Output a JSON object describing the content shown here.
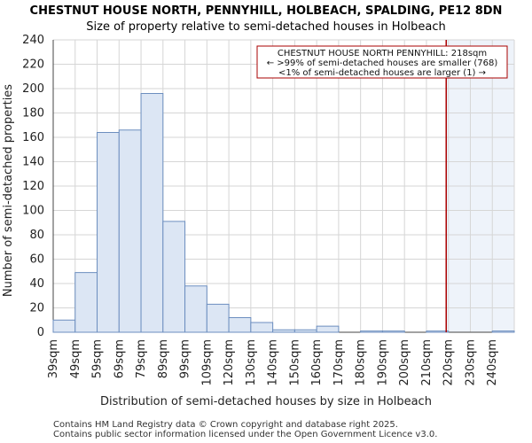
{
  "chart_data": {
    "type": "bar",
    "title": "CHESTNUT HOUSE NORTH, PENNYHILL, HOLBEACH, SPALDING, PE12 8DN",
    "subtitle": "Size of property relative to semi-detached houses in Holbeach",
    "xlabel": "Distribution of semi-detached houses by size in Holbeach",
    "ylabel": "Number of semi-detached properties",
    "categories": [
      "39sqm",
      "49sqm",
      "59sqm",
      "69sqm",
      "79sqm",
      "89sqm",
      "99sqm",
      "109sqm",
      "120sqm",
      "130sqm",
      "140sqm",
      "150sqm",
      "160sqm",
      "170sqm",
      "180sqm",
      "190sqm",
      "200sqm",
      "210sqm",
      "220sqm",
      "230sqm",
      "240sqm"
    ],
    "values": [
      10,
      49,
      164,
      166,
      196,
      91,
      38,
      23,
      12,
      8,
      2,
      2,
      5,
      0,
      1,
      1,
      0,
      1,
      0,
      0,
      1
    ],
    "ylim": [
      0,
      240
    ],
    "yticks": [
      0,
      20,
      40,
      60,
      80,
      100,
      120,
      140,
      160,
      180,
      200,
      220,
      240
    ],
    "grid": true,
    "bar_fill": "#dce6f4",
    "bar_stroke": "#6c8ebf",
    "highlight_fill": "#eef3fa",
    "marker_color": "#aa0000",
    "marker_value_sqm": 218,
    "annotation": {
      "line1": "CHESTNUT HOUSE NORTH PENNYHILL: 218sqm",
      "line2": "← >99% of semi-detached houses are smaller (768)",
      "line3": "<1% of semi-detached houses are larger (1) →"
    }
  },
  "footer": {
    "line1": "Contains HM Land Registry data © Crown copyright and database right 2025.",
    "line2": "Contains public sector information licensed under the Open Government Licence v3.0."
  }
}
